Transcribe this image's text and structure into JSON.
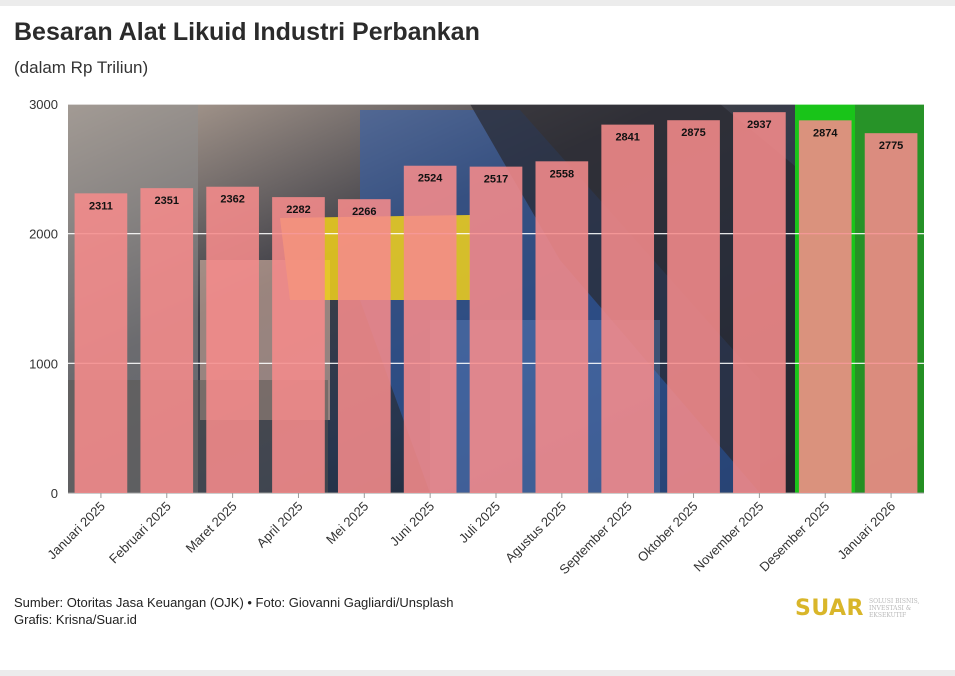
{
  "header": {
    "title": "Besaran Alat Likuid Industri Perbankan",
    "subtitle": "(dalam Rp Triliun)"
  },
  "footer": {
    "source": "Sumber: Otoritas Jasa Keuangan (OJK) • Foto: Giovanni Gagliardi/Unsplash",
    "credit": "Grafis: Krisna/Suar.id"
  },
  "logo": {
    "word": "SUAR",
    "tagline": "SOLUSI BISNIS, INVESTASI & EKSEKUTIF"
  },
  "colors": {
    "bar": "#f58b8b",
    "value_label": "#111111",
    "axis_text": "#333333",
    "gridline": "#ffffff",
    "logo": "#d9b62a"
  },
  "chart_data": {
    "type": "bar",
    "categories": [
      "Januari 2025",
      "Februari 2025",
      "Maret 2025",
      "April 2025",
      "Mei 2025",
      "Juni 2025",
      "Juli 2025",
      "Agustus 2025",
      "September 2025",
      "Oktober 2025",
      "November 2025",
      "Desember 2025",
      "Januari 2026"
    ],
    "values": [
      2311,
      2351,
      2362,
      2282,
      2266,
      2524,
      2517,
      2558,
      2841,
      2875,
      2937,
      2874,
      2775
    ],
    "yticks": [
      0,
      1000,
      2000,
      3000
    ],
    "ylim": [
      0,
      3000
    ],
    "grid": true,
    "data_labels": true,
    "background": "photo of a hand inserting a card into an ATM"
  }
}
